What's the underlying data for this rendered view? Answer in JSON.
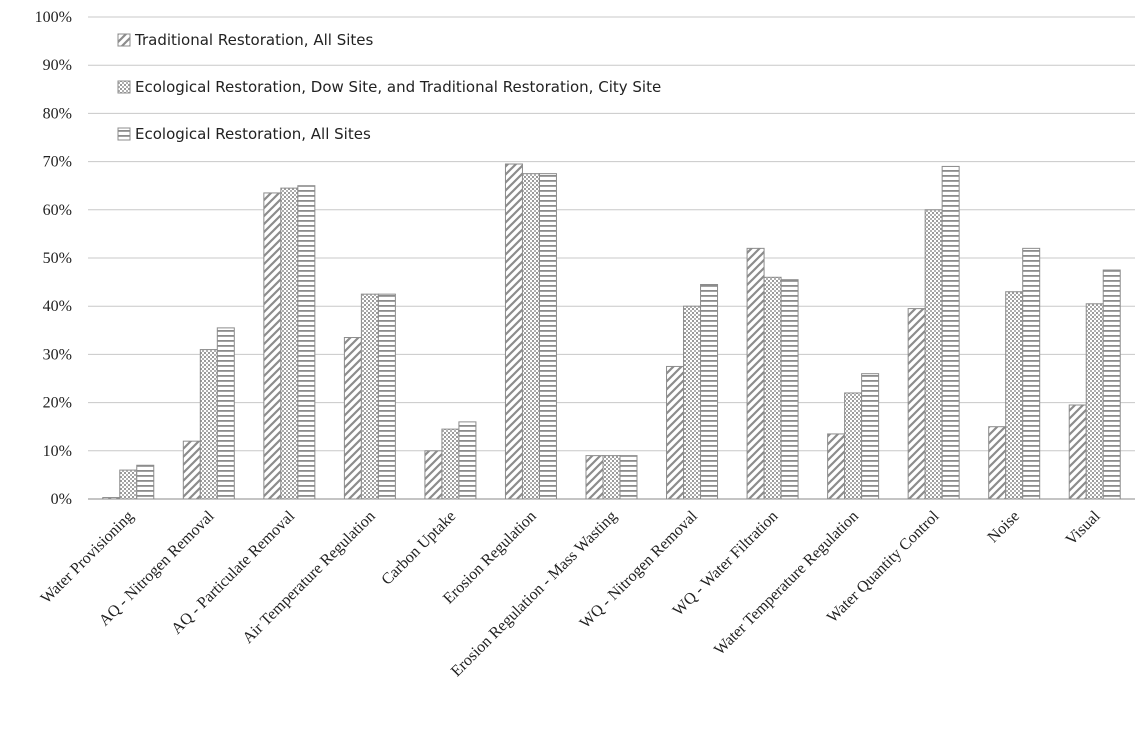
{
  "chart_data": {
    "type": "bar",
    "title": "",
    "xlabel": "",
    "ylabel": "",
    "ylim": [
      0,
      100
    ],
    "y_ticks": [
      "0%",
      "10%",
      "20%",
      "30%",
      "40%",
      "50%",
      "60%",
      "70%",
      "80%",
      "90%",
      "100%"
    ],
    "grid": "horizontal",
    "legend_position": "top-left",
    "categories": [
      "Water Provisioning",
      "AQ - Nitrogen Removal",
      "AQ - Particulate Removal",
      "Air Temperature Regulation",
      "Carbon Uptake",
      "Erosion Regulation",
      "Erosion Regulation - Mass Wasting",
      "WQ - Nitrogen Removal",
      "WQ - Water Filtration",
      "Water Temperature Regulation",
      "Water Quantity Control",
      "Noise",
      "Visual"
    ],
    "series": [
      {
        "name": "Traditional Restoration, All Sites",
        "pattern": "diagonal",
        "values": [
          0.3,
          12,
          63.5,
          33.5,
          10,
          69.5,
          9,
          27.5,
          52,
          13.5,
          39.5,
          15,
          19.5
        ]
      },
      {
        "name": "Ecological Restoration, Dow Site, and Traditional Restoration, City Site",
        "pattern": "dots",
        "values": [
          6,
          31,
          64.5,
          42.5,
          14.5,
          67.5,
          9,
          40,
          46,
          22,
          60,
          43,
          40.5
        ]
      },
      {
        "name": "Ecological Restoration, All Sites",
        "pattern": "horizontal",
        "values": [
          7,
          35.5,
          65,
          42.5,
          16,
          67.5,
          9,
          44.5,
          45.5,
          26,
          69,
          52,
          47.5
        ]
      }
    ],
    "colors": {
      "stroke": "#8c8c8c",
      "grid": "#c8c8c8"
    }
  }
}
